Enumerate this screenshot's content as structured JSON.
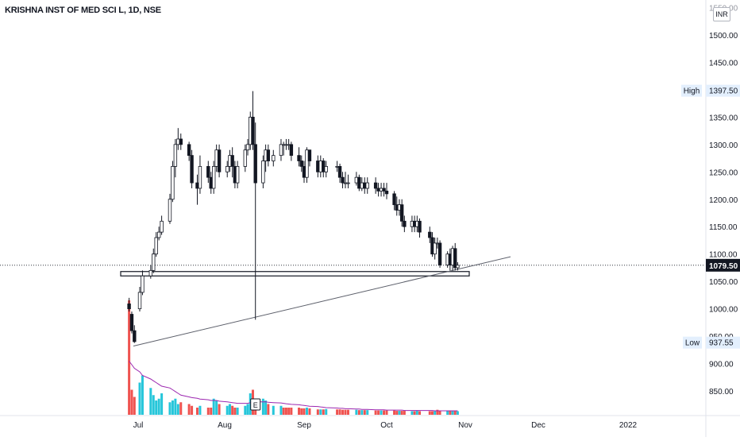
{
  "header": {
    "symbol_title": "KRISHNA INST OF MED SCI L, 1D, NSE",
    "currency": "INR"
  },
  "price_axis": {
    "ticks": [
      "1550.00",
      "1500.00",
      "1450.00",
      "1400.00",
      "1350.00",
      "1300.00",
      "1250.00",
      "1200.00",
      "1150.00",
      "1100.00",
      "1050.00",
      "1000.00",
      "950.00",
      "900.00",
      "850.00"
    ],
    "high_label": "High",
    "high_value": "1397.50",
    "low_label": "Low",
    "low_value": "937.55",
    "last_value": "1079.50"
  },
  "time_axis": {
    "labels": [
      "Jul",
      "Aug",
      "Sep",
      "Oct",
      "Nov",
      "Dec",
      "2022"
    ]
  },
  "earnings_marker": "E",
  "colors": {
    "up": "#ffffff",
    "down": "#131722",
    "vol_up": "#26c6da",
    "vol_down": "#ef5350",
    "ipo_bar": "#ef5350",
    "ma_line": "#9c27b0",
    "trendline": "#5d606b",
    "last_price_bg": "#131722"
  },
  "chart_data": {
    "type": "candlestick",
    "symbol": "KRISHNA INST OF MED SCI L",
    "interval": "1D",
    "exchange": "NSE",
    "currency": "INR",
    "ylim": [
      820,
      1560
    ],
    "high": 1397.5,
    "low": 937.55,
    "last": 1079.5,
    "x": [
      "Jun 28",
      "Jun 29",
      "Jun 30",
      "Jul 1",
      "Jul 2",
      "Jul 5",
      "Jul 6",
      "Jul 7",
      "Jul 8",
      "Jul 9",
      "Jul 12",
      "Jul 13",
      "Jul 14",
      "Jul 15",
      "Jul 16",
      "Jul 19",
      "Jul 20",
      "Jul 22",
      "Jul 23",
      "Jul 26",
      "Jul 27",
      "Jul 28",
      "Jul 29",
      "Jul 30",
      "Aug 2",
      "Aug 3",
      "Aug 4",
      "Aug 5",
      "Aug 6",
      "Aug 9",
      "Aug 10",
      "Aug 11",
      "Aug 12",
      "Aug 13",
      "Aug 16",
      "Aug 17",
      "Aug 18",
      "Aug 20",
      "Aug 23",
      "Aug 24",
      "Aug 25",
      "Aug 26",
      "Aug 27",
      "Aug 30",
      "Aug 31",
      "Sep 1",
      "Sep 2",
      "Sep 3",
      "Sep 6",
      "Sep 7",
      "Sep 8",
      "Sep 9",
      "Sep 13",
      "Sep 14",
      "Sep 15",
      "Sep 16",
      "Sep 17",
      "Sep 20",
      "Sep 21",
      "Sep 22",
      "Sep 23",
      "Sep 24",
      "Sep 27",
      "Sep 28",
      "Sep 29",
      "Sep 30",
      "Oct 1",
      "Oct 4",
      "Oct 5",
      "Oct 6",
      "Oct 7",
      "Oct 8",
      "Oct 11",
      "Oct 12",
      "Oct 13",
      "Oct 14",
      "Oct 18",
      "Oct 19",
      "Oct 20",
      "Oct 21",
      "Oct 22",
      "Oct 25",
      "Oct 26",
      "Oct 27",
      "Oct 28",
      "Oct 29"
    ],
    "open": [
      1009,
      990,
      960,
      1000,
      1030,
      1060,
      1070,
      1100,
      1130,
      1140,
      1160,
      1200,
      1260,
      1300,
      1310,
      1300,
      1280,
      1230,
      1220,
      1260,
      1240,
      1220,
      1260,
      1290,
      1250,
      1260,
      1280,
      1260,
      1230,
      1260,
      1290,
      1300,
      1350,
      1300,
      1230,
      1270,
      1290,
      1270,
      1280,
      1300,
      1300,
      1300,
      1300,
      1280,
      1270,
      1260,
      1240,
      1290,
      1270,
      1250,
      1270,
      1250,
      1260,
      1260,
      1240,
      1230,
      1230,
      1230,
      1240,
      1220,
      1230,
      1220,
      1230,
      1220,
      1215,
      1220,
      1215,
      1210,
      1190,
      1180,
      1190,
      1160,
      1150,
      1160,
      1150,
      1160,
      1140,
      1130,
      1100,
      1120,
      1120,
      1080,
      1100,
      1080,
      1110,
      1075
    ],
    "close": [
      1000,
      960,
      940,
      1030,
      1060,
      1070,
      1100,
      1130,
      1140,
      1160,
      1200,
      1260,
      1300,
      1310,
      1300,
      1280,
      1230,
      1220,
      1260,
      1240,
      1220,
      1260,
      1290,
      1250,
      1260,
      1280,
      1260,
      1230,
      1260,
      1290,
      1300,
      1350,
      1300,
      1230,
      1270,
      1290,
      1270,
      1280,
      1300,
      1300,
      1300,
      1300,
      1280,
      1270,
      1260,
      1240,
      1290,
      1270,
      1250,
      1270,
      1250,
      1260,
      1260,
      1240,
      1230,
      1230,
      1230,
      1240,
      1220,
      1230,
      1220,
      1230,
      1220,
      1215,
      1220,
      1215,
      1210,
      1190,
      1180,
      1190,
      1160,
      1150,
      1160,
      1150,
      1160,
      1140,
      1130,
      1100,
      1120,
      1120,
      1080,
      1100,
      1080,
      1110,
      1075,
      1079.5
    ],
    "hi": [
      1020,
      995,
      970,
      1040,
      1070,
      1080,
      1110,
      1140,
      1150,
      1170,
      1210,
      1270,
      1310,
      1330,
      1320,
      1305,
      1290,
      1245,
      1280,
      1270,
      1250,
      1270,
      1300,
      1300,
      1270,
      1290,
      1295,
      1270,
      1270,
      1300,
      1310,
      1360,
      1397.5,
      1340,
      1280,
      1300,
      1300,
      1290,
      1310,
      1305,
      1310,
      1310,
      1305,
      1295,
      1280,
      1270,
      1295,
      1290,
      1280,
      1280,
      1275,
      1270,
      1270,
      1265,
      1250,
      1250,
      1245,
      1250,
      1245,
      1240,
      1240,
      1240,
      1240,
      1230,
      1230,
      1230,
      1230,
      1215,
      1205,
      1200,
      1200,
      1170,
      1170,
      1170,
      1170,
      1165,
      1150,
      1140,
      1130,
      1130,
      1125,
      1105,
      1110,
      1115,
      1120,
      1085
    ],
    "lo": [
      995,
      955,
      937.55,
      995,
      1025,
      1055,
      1065,
      1095,
      1125,
      1135,
      1155,
      1195,
      1240,
      1290,
      1290,
      1270,
      1220,
      1190,
      1210,
      1230,
      1210,
      1210,
      1250,
      1240,
      1240,
      1250,
      1240,
      1220,
      1220,
      1250,
      1280,
      1290,
      1290,
      980,
      1220,
      1250,
      1260,
      1260,
      1270,
      1280,
      1290,
      1290,
      1270,
      1260,
      1250,
      1230,
      1230,
      1260,
      1240,
      1240,
      1240,
      1240,
      1250,
      1230,
      1220,
      1220,
      1220,
      1225,
      1215,
      1215,
      1210,
      1210,
      1210,
      1205,
      1205,
      1205,
      1200,
      1180,
      1170,
      1170,
      1150,
      1140,
      1140,
      1140,
      1140,
      1130,
      1120,
      1095,
      1090,
      1110,
      1075,
      1075,
      1070,
      1070,
      1070,
      1070
    ],
    "volume": [
      320,
      70,
      50,
      90,
      110,
      75,
      55,
      40,
      45,
      60,
      35,
      40,
      45,
      30,
      35,
      30,
      25,
      20,
      25,
      20,
      20,
      45,
      40,
      30,
      25,
      30,
      25,
      20,
      20,
      25,
      30,
      60,
      70,
      40,
      45,
      40,
      30,
      25,
      25,
      20,
      20,
      20,
      20,
      20,
      18,
      18,
      20,
      18,
      15,
      15,
      15,
      16,
      15,
      15,
      14,
      14,
      14,
      14,
      13,
      13,
      13,
      13,
      12,
      12,
      12,
      12,
      12,
      12,
      11,
      11,
      11,
      11,
      10,
      10,
      12,
      10,
      10,
      10,
      10,
      14,
      10,
      10,
      10,
      10,
      10,
      10
    ],
    "volume_ma": [
      150,
      140,
      130,
      120,
      110,
      100,
      95,
      90,
      85,
      80,
      75,
      70,
      65,
      60,
      55,
      50,
      48,
      46,
      44,
      42,
      40,
      40,
      40,
      38,
      36,
      35,
      34,
      33,
      32,
      32,
      32,
      34,
      36,
      36,
      36,
      36,
      35,
      34,
      33,
      32,
      31,
      30,
      29,
      28,
      27,
      26,
      25,
      24,
      23,
      22,
      21,
      20,
      19,
      18,
      18,
      17,
      17,
      16,
      16,
      15,
      15,
      15,
      14,
      14,
      14,
      14,
      13,
      13,
      13,
      13,
      13,
      12,
      12,
      12,
      12,
      12,
      12,
      12,
      11,
      11,
      11,
      11,
      11,
      11,
      11,
      11
    ],
    "volume_up": [
      false,
      false,
      false,
      true,
      true,
      true,
      true,
      true,
      true,
      true,
      true,
      true,
      true,
      true,
      false,
      false,
      false,
      false,
      true,
      false,
      false,
      true,
      true,
      false,
      true,
      true,
      false,
      false,
      true,
      true,
      true,
      true,
      false,
      false,
      true,
      true,
      false,
      true,
      true,
      false,
      false,
      false,
      false,
      false,
      false,
      false,
      true,
      false,
      false,
      true,
      false,
      true,
      false,
      false,
      false,
      false,
      false,
      true,
      false,
      true,
      false,
      true,
      false,
      false,
      true,
      false,
      false,
      false,
      false,
      true,
      false,
      false,
      true,
      false,
      true,
      false,
      false,
      false,
      true,
      false,
      false,
      true,
      false,
      true,
      false,
      true
    ],
    "support_zone": [
      1060,
      1068
    ],
    "trendline": {
      "from": [
        "Jun 29",
        932
      ],
      "to": [
        "Nov 16",
        1095
      ]
    },
    "earnings": "Aug 13"
  }
}
